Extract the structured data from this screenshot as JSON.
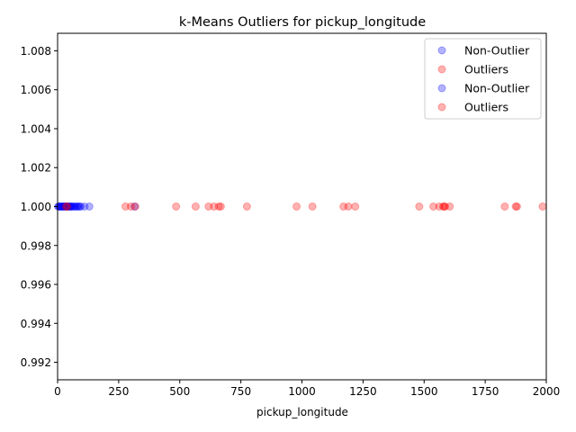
{
  "chart_data": {
    "type": "scatter",
    "title": "k-Means Outliers for pickup_longitude",
    "xlabel": "pickup_longitude",
    "ylabel": "",
    "xlim": [
      0,
      2000
    ],
    "ylim": [
      0.9911,
      1.0089
    ],
    "x_ticks": [
      0,
      250,
      500,
      750,
      1000,
      1250,
      1500,
      1750,
      2000
    ],
    "x_tick_labels": [
      "0",
      "250",
      "500",
      "750",
      "1000",
      "1250",
      "1500",
      "1750",
      "2000"
    ],
    "y_ticks": [
      0.992,
      0.994,
      0.996,
      0.998,
      1.0,
      1.002,
      1.004,
      1.006,
      1.008
    ],
    "y_tick_labels": [
      "0.992",
      "0.994",
      "0.996",
      "0.998",
      "1.000",
      "1.002",
      "1.004",
      "1.006",
      "1.008"
    ],
    "grid": false,
    "legend_position": "top-right",
    "series": [
      {
        "name": "Non-Outlier",
        "color": "#0000ff",
        "x": [
          2,
          5,
          8,
          11,
          14,
          17,
          20,
          23,
          26,
          29,
          32,
          35,
          38,
          41,
          44,
          47,
          50,
          53,
          56,
          60,
          65,
          70,
          75,
          80,
          85,
          90,
          95,
          110,
          130,
          315
        ],
        "y": [
          1,
          1,
          1,
          1,
          1,
          1,
          1,
          1,
          1,
          1,
          1,
          1,
          1,
          1,
          1,
          1,
          1,
          1,
          1,
          1,
          1,
          1,
          1,
          1,
          1,
          1,
          1,
          1,
          1,
          1
        ]
      },
      {
        "name": "Outliers",
        "color": "#ff0000",
        "x": [
          35,
          40,
          278,
          300,
          318,
          485,
          565,
          618,
          640,
          660,
          668,
          775,
          978,
          1043,
          1170,
          1190,
          1218,
          1480,
          1538,
          1562,
          1578,
          1582,
          1586,
          1605,
          1830,
          1875,
          1880,
          1985
        ],
        "y": [
          1,
          1,
          1,
          1,
          1,
          1,
          1,
          1,
          1,
          1,
          1,
          1,
          1,
          1,
          1,
          1,
          1,
          1,
          1,
          1,
          1,
          1,
          1,
          1,
          1,
          1,
          1,
          1
        ]
      }
    ],
    "legend": [
      {
        "label": "Non-Outlier",
        "color": "#0000ff"
      },
      {
        "label": "Outliers",
        "color": "#ff0000"
      },
      {
        "label": "Non-Outlier",
        "color": "#0000ff"
      },
      {
        "label": "Outliers",
        "color": "#ff0000"
      }
    ]
  }
}
